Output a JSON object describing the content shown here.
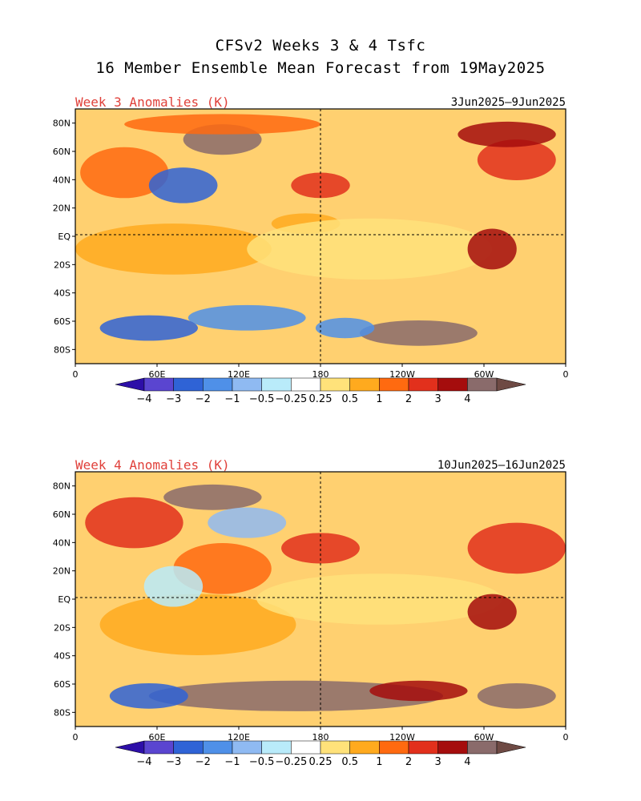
{
  "title": {
    "line1": "CFSv2 Weeks 3 & 4 Tsfc",
    "line2": "16 Member Ensemble Mean Forecast from 19May2025"
  },
  "palette": {
    "levels": [
      -4,
      -3,
      -2,
      -1,
      -0.5,
      -0.25,
      0.25,
      0.5,
      1,
      2,
      3,
      4
    ],
    "level_labels": [
      "−4",
      "−3",
      "−2",
      "−1",
      "−0.5",
      "−0.25",
      "0.25",
      "0.5",
      "1",
      "2",
      "3",
      "4"
    ],
    "colors": [
      "#2d0fa8",
      "#5a45d0",
      "#2f63d6",
      "#4f90e8",
      "#8fbaf2",
      "#b9ebfa",
      "#ffffff",
      "#ffe27a",
      "#ffaa1e",
      "#ff6a10",
      "#e2301c",
      "#a50d0d",
      "#8a6b6b",
      "#6e4a44"
    ]
  },
  "map_axes": {
    "lat_labels": [
      "80N",
      "60N",
      "40N",
      "20N",
      "EQ",
      "20S",
      "40S",
      "60S",
      "80S"
    ],
    "lon_labels": [
      "0",
      "60E",
      "120E",
      "180",
      "120W",
      "60W",
      "0"
    ]
  },
  "panels": [
    {
      "id": "week3",
      "label": "Week 3 Anomalies (K)",
      "dates": "3Jun2025—9Jun2025"
    },
    {
      "id": "week4",
      "label": "Week 4 Anomalies (K)",
      "dates": "10Jun2025—16Jun2025"
    }
  ]
}
